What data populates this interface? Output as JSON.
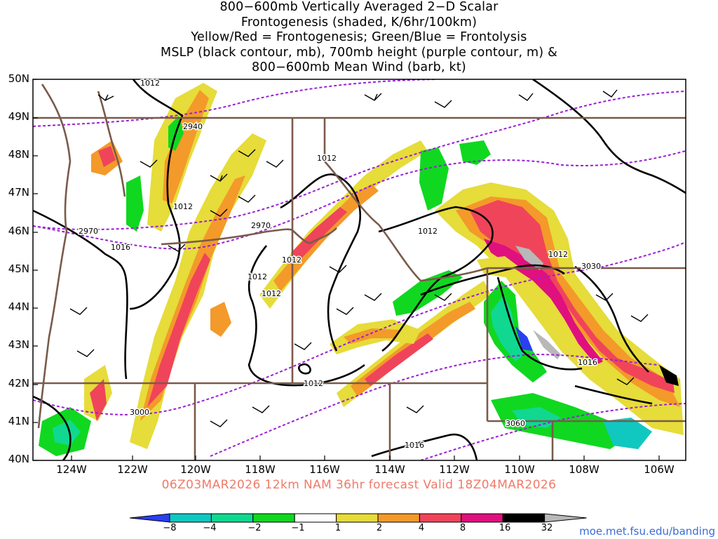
{
  "title": {
    "line1": "800−600mb Vertically Averaged 2−D Scalar",
    "line2": "Frontogenesis (shaded, K/6hr/100km)",
    "line3": "Yellow/Red = Frontogenesis;  Green/Blue = Frontolysis",
    "line4": "MSLP (black contour, mb), 700mb height (purple contour, m) &",
    "line5": "800−600mb Mean Wind (barb, kt)"
  },
  "lat_labels": [
    "50N",
    "49N",
    "48N",
    "47N",
    "46N",
    "45N",
    "44N",
    "43N",
    "42N",
    "41N",
    "40N"
  ],
  "lon_labels": [
    "124W",
    "122W",
    "120W",
    "118W",
    "116W",
    "114W",
    "112W",
    "110W",
    "108W",
    "106W"
  ],
  "valid_line": "06Z03MAR2026 12km NAM 36hr forecast Valid 18Z04MAR2026",
  "colorbar": {
    "labels": [
      "−8",
      "−4",
      "−2",
      "−1",
      "1",
      "2",
      "4",
      "8",
      "16",
      "32"
    ],
    "colors": [
      "#2a3ff0",
      "#10c8c0",
      "#10d890",
      "#10d820",
      "#ffffff",
      "#e6dc3a",
      "#f39a2a",
      "#f0445a",
      "#e0107e",
      "#000000",
      "#b8b8b8"
    ]
  },
  "contour_labels": {
    "mslp": [
      "1012",
      "1012",
      "1012",
      "1012",
      "1012",
      "1012",
      "1012",
      "1012",
      "1012",
      "1016",
      "1016",
      "1016"
    ],
    "height700": [
      "2940",
      "2970",
      "2970",
      "3000",
      "3030",
      "3060"
    ]
  },
  "credit": "moe.met.fsu.edu/banding",
  "colors": {
    "mslp": "#000000",
    "height": "#9b1fd6",
    "borders": "#7a5a4a",
    "valid_text": "#f07a6a",
    "credit_text": "#3a6bd8"
  }
}
